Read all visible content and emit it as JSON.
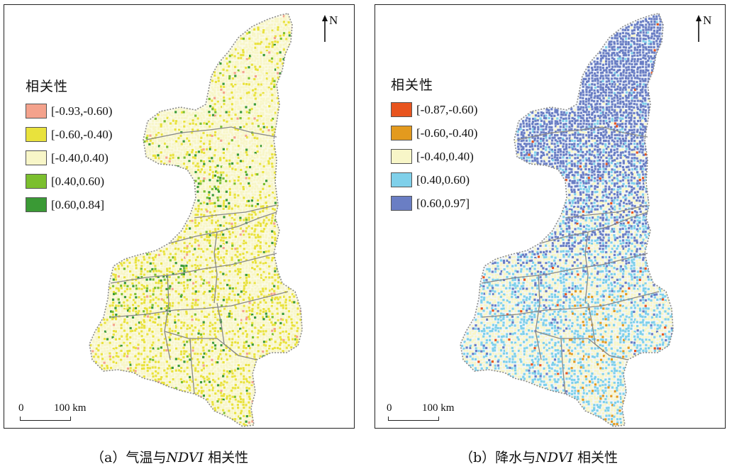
{
  "panels": [
    {
      "id": "a",
      "caption_prefix": "（a）气温与",
      "caption_var": "NDVI",
      "caption_suffix": " 相关性",
      "legend_title": "相关性",
      "legend": [
        {
          "label": "[-0.93,-0.60)",
          "color": "#f4a28c"
        },
        {
          "label": "[-0.60,-0.40)",
          "color": "#e9e23c"
        },
        {
          "label": "[-0.40,0.40)",
          "color": "#f8f6c8"
        },
        {
          "label": "[0.40,0.60)",
          "color": "#7bbf2e"
        },
        {
          "label": "[0.60,0.84]",
          "color": "#3a9a35"
        }
      ],
      "north": "N",
      "scale_zero": "0",
      "scale_distance": "100 km"
    },
    {
      "id": "b",
      "caption_prefix": "（b）降水与",
      "caption_var": "NDVI",
      "caption_suffix": " 相关性",
      "legend_title": "相关性",
      "legend": [
        {
          "label": "[-0.87,-0.60)",
          "color": "#e8541e"
        },
        {
          "label": "[-0.60,-0.40)",
          "color": "#e39a1e"
        },
        {
          "label": "[-0.40,0.40)",
          "color": "#f8f6c8"
        },
        {
          "label": "[0.40,0.60)",
          "color": "#7fd0ea"
        },
        {
          "label": "[0.60,0.97]",
          "color": "#6a7ec4"
        }
      ],
      "north": "N",
      "scale_zero": "0",
      "scale_distance": "100 km"
    }
  ]
}
